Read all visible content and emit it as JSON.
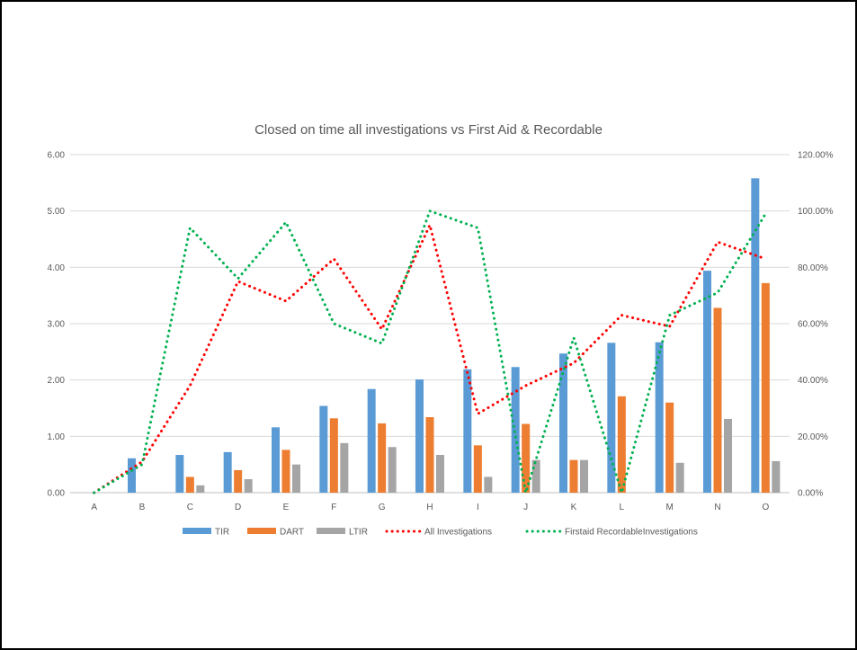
{
  "chart_data": {
    "type": "bar",
    "title": "Closed on time all investigations vs First Aid & Recordable",
    "categories": [
      "A",
      "B",
      "C",
      "D",
      "E",
      "F",
      "G",
      "H",
      "I",
      "J",
      "K",
      "L",
      "M",
      "N",
      "O"
    ],
    "y_left": {
      "min": 0,
      "max": 6,
      "step": 1,
      "tick_labels": [
        "0.00",
        "1.00",
        "2.00",
        "3.00",
        "4.00",
        "5.00",
        "6.00"
      ]
    },
    "y_right": {
      "min": 0,
      "max": 1.2,
      "step": 0.2,
      "tick_labels": [
        "0.00%",
        "20.00%",
        "40.00%",
        "60.00%",
        "80.00%",
        "100.00%",
        "120.00%"
      ]
    },
    "grid": true,
    "legend_position": "bottom",
    "series": [
      {
        "name": "TIR",
        "type": "bar",
        "axis": "left",
        "color": "#5B9BD5",
        "values": [
          0,
          0.61,
          0.67,
          0.72,
          1.16,
          1.54,
          1.84,
          2.01,
          2.19,
          2.23,
          2.47,
          2.66,
          2.67,
          3.94,
          5.58
        ]
      },
      {
        "name": "DART",
        "type": "bar",
        "axis": "left",
        "color": "#ED7D31",
        "values": [
          0,
          0,
          0.28,
          0.4,
          0.76,
          1.32,
          1.23,
          1.34,
          0.84,
          1.22,
          0.58,
          1.71,
          1.6,
          3.28,
          3.72
        ]
      },
      {
        "name": "LTIR",
        "type": "bar",
        "axis": "left",
        "color": "#A5A5A5",
        "values": [
          0,
          0,
          0.13,
          0.24,
          0.5,
          0.88,
          0.81,
          0.67,
          0.28,
          0.58,
          0.58,
          0,
          0.53,
          1.31,
          0.56
        ]
      },
      {
        "name": "All Investigations",
        "type": "line",
        "axis": "right",
        "color": "#FF0000",
        "values": [
          0,
          0.11,
          0.38,
          0.75,
          0.68,
          0.83,
          0.58,
          0.95,
          0.28,
          0.38,
          0.46,
          0.63,
          0.59,
          0.89,
          0.83
        ]
      },
      {
        "name": "Firstaid RecordableInvestigations",
        "type": "line",
        "axis": "right",
        "color": "#00B050",
        "values": [
          0,
          0.1,
          0.94,
          0.76,
          0.96,
          0.6,
          0.53,
          1.0,
          0.94,
          0,
          0.55,
          0,
          0.63,
          0.71,
          0.99
        ]
      }
    ]
  }
}
